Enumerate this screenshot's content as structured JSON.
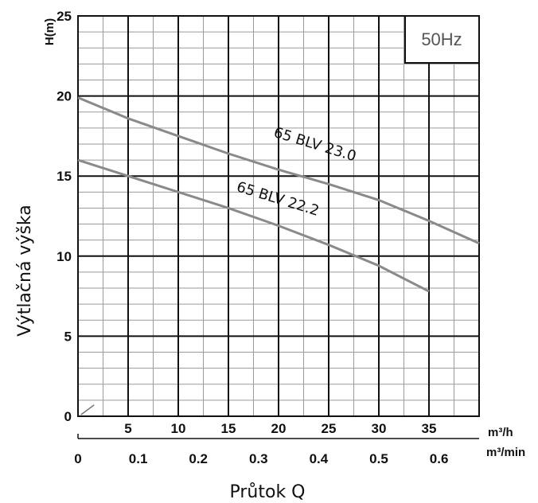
{
  "chart_data": {
    "type": "line",
    "frequency_badge": "50Hz",
    "y_axis_unit_label": "H(m)",
    "ylabel": "Výtlačná výška",
    "xlabel": "Průtok Q",
    "x_unit_primary": "m³/h",
    "x_unit_secondary": "m³/min",
    "xlim": [
      0,
      40
    ],
    "ylim": [
      0,
      25
    ],
    "x_ticks_m3h": [
      "5",
      "10",
      "15",
      "20",
      "25",
      "30",
      "35"
    ],
    "x_ticks_m3min": [
      "0",
      "0.1",
      "0.2",
      "0.3",
      "0.4",
      "0.5",
      "0.6"
    ],
    "y_ticks": [
      "0",
      "5",
      "10",
      "15",
      "20",
      "25"
    ],
    "grid": true,
    "series": [
      {
        "name": "65 BLV 23.0",
        "x": [
          0,
          5,
          10,
          15,
          20,
          25,
          30,
          35,
          40
        ],
        "y": [
          19.9,
          18.6,
          17.5,
          16.4,
          15.4,
          14.5,
          13.5,
          12.2,
          10.8
        ]
      },
      {
        "name": "65 BLV 22.2",
        "x": [
          0,
          5,
          10,
          15,
          20,
          25,
          30,
          35
        ],
        "y": [
          16.0,
          15.0,
          14.0,
          13.0,
          11.9,
          10.7,
          9.4,
          7.8
        ]
      }
    ]
  }
}
